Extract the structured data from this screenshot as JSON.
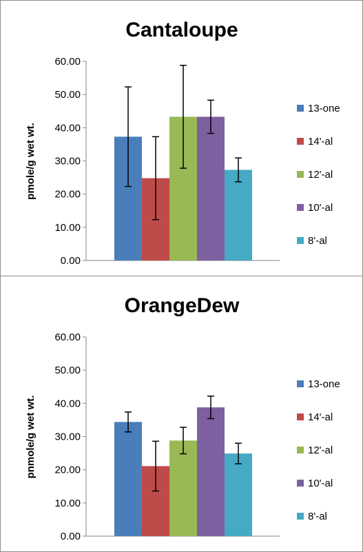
{
  "chart_data": [
    {
      "type": "bar",
      "title": "Cantaloupe",
      "xlabel": "",
      "ylabel": "pmole/g wet wt.",
      "ylim": [
        0,
        60
      ],
      "yticks": [
        "0.00",
        "10.00",
        "20.00",
        "30.00",
        "40.00",
        "50.00",
        "60.00"
      ],
      "grid": false,
      "legend_position": "right",
      "series": [
        {
          "name": "13-one",
          "values": [
            37.3
          ],
          "error": [
            15.0
          ],
          "color": "#4a7ebb"
        },
        {
          "name": "14'-al",
          "values": [
            24.8
          ],
          "error": [
            12.5
          ],
          "color": "#be4b48"
        },
        {
          "name": "12'-al",
          "values": [
            43.3
          ],
          "error": [
            15.5
          ],
          "color": "#98b954"
        },
        {
          "name": "10'-al",
          "values": [
            43.3
          ],
          "error": [
            5.0
          ],
          "color": "#7d60a0"
        },
        {
          "name": "8'-al",
          "values": [
            27.3
          ],
          "error": [
            3.6
          ],
          "color": "#46aac5"
        }
      ]
    },
    {
      "type": "bar",
      "title": "OrangeDew",
      "xlabel": "",
      "ylabel": "pnmole/g wet wt.",
      "ylim": [
        0,
        60
      ],
      "yticks": [
        "0.00",
        "10.00",
        "20.00",
        "30.00",
        "40.00",
        "50.00",
        "60.00"
      ],
      "grid": false,
      "legend_position": "right",
      "series": [
        {
          "name": "13-one",
          "values": [
            34.4
          ],
          "error": [
            3.0
          ],
          "color": "#4a7ebb"
        },
        {
          "name": "14'-al",
          "values": [
            21.1
          ],
          "error": [
            7.5
          ],
          "color": "#be4b48"
        },
        {
          "name": "12'-al",
          "values": [
            28.8
          ],
          "error": [
            4.0
          ],
          "color": "#98b954"
        },
        {
          "name": "10'-al",
          "values": [
            38.8
          ],
          "error": [
            3.4
          ],
          "color": "#7d60a0"
        },
        {
          "name": "8'-al",
          "values": [
            24.9
          ],
          "error": [
            3.1
          ],
          "color": "#46aac5"
        }
      ]
    }
  ]
}
